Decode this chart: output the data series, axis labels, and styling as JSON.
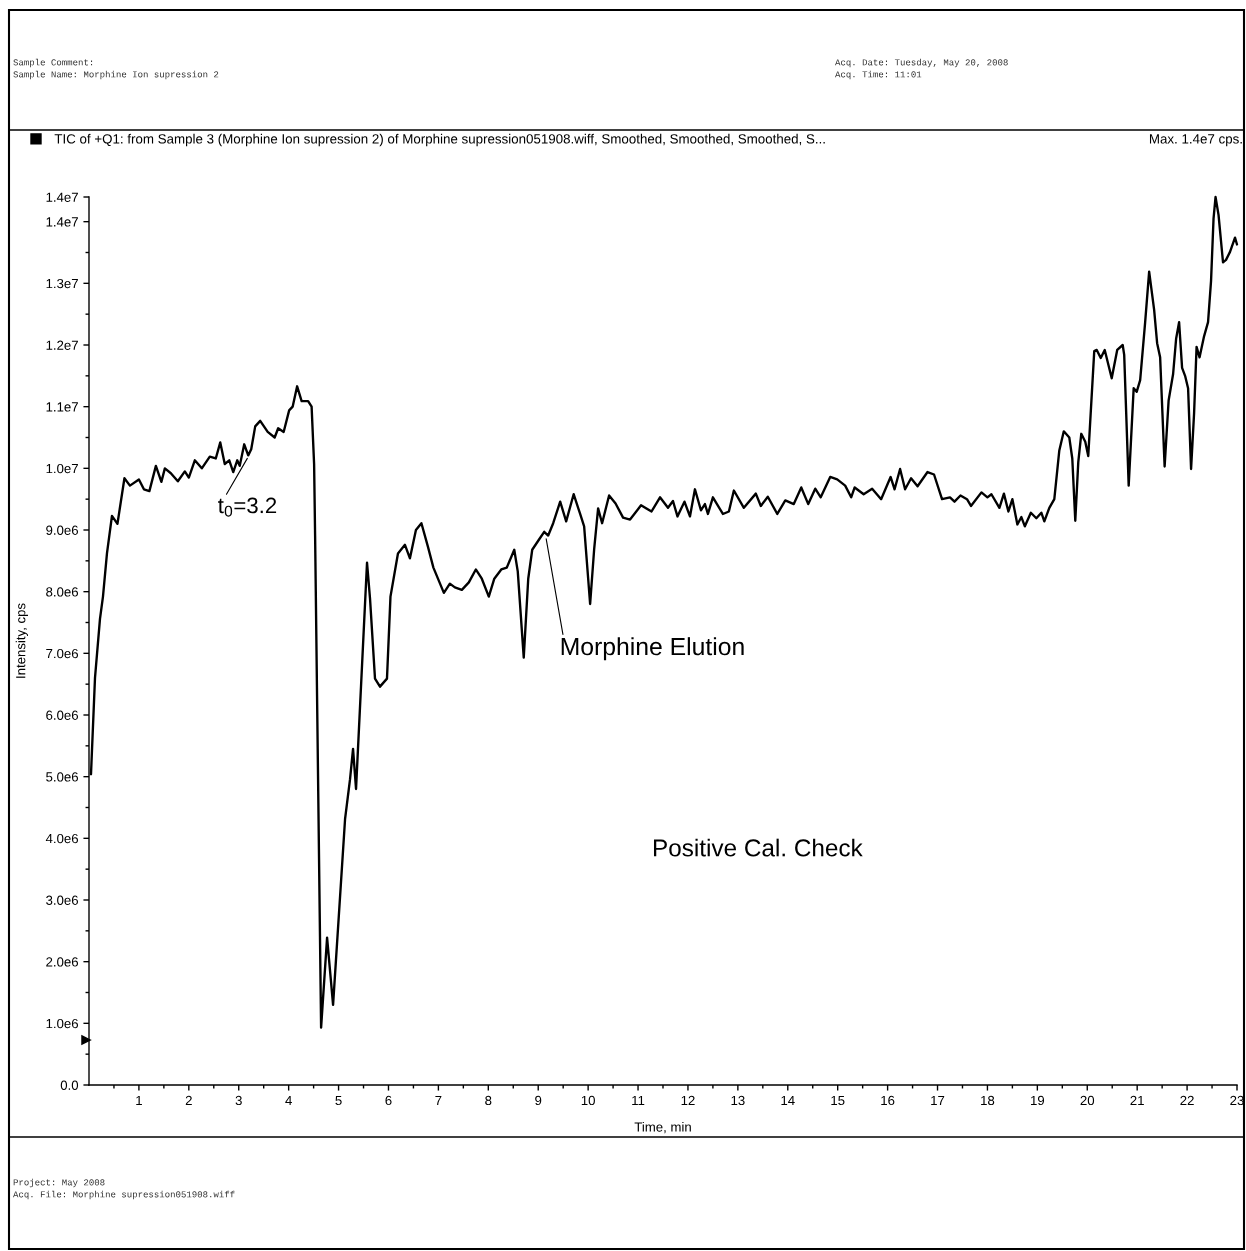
{
  "chart_data": {
    "type": "line",
    "xlabel": "Time, min",
    "ylabel": "Intensity, cps",
    "xlim": [
      0,
      23
    ],
    "ylim": [
      0,
      14400000.0
    ],
    "xticks": [
      {
        "value": 0.5,
        "label": null
      },
      1,
      {
        "value": 1.5,
        "label": null
      },
      2,
      {
        "value": 2.5,
        "label": null
      },
      3,
      {
        "value": 3.5,
        "label": null
      },
      4,
      {
        "value": 4.5,
        "label": null
      },
      5,
      {
        "value": 5.5,
        "label": null
      },
      6,
      {
        "value": 6.5,
        "label": null
      },
      7,
      {
        "value": 7.5,
        "label": null
      },
      8,
      {
        "value": 8.5,
        "label": null
      },
      9,
      {
        "value": 9.5,
        "label": null
      },
      10,
      {
        "value": 10.5,
        "label": null
      },
      11,
      {
        "value": 11.5,
        "label": null
      },
      12,
      {
        "value": 12.5,
        "label": null
      },
      13,
      {
        "value": 13.5,
        "label": null
      },
      14,
      {
        "value": 14.5,
        "label": null
      },
      15,
      {
        "value": 15.5,
        "label": null
      },
      16,
      {
        "value": 16.5,
        "label": null
      },
      17,
      {
        "value": 17.5,
        "label": null
      },
      18,
      {
        "value": 18.5,
        "label": null
      },
      19,
      {
        "value": 19.5,
        "label": null
      },
      20,
      {
        "value": 20.5,
        "label": null
      },
      21,
      {
        "value": 21.5,
        "label": null
      },
      22,
      {
        "value": 22.5,
        "label": null
      },
      23
    ],
    "yticks": [
      {
        "value": 0,
        "label": "0.0"
      },
      {
        "value": 500000.0,
        "label": null
      },
      {
        "value": 1000000.0,
        "label": "1.0e6"
      },
      {
        "value": 1500000.0,
        "label": null
      },
      {
        "value": 2000000.0,
        "label": "2.0e6"
      },
      {
        "value": 2500000.0,
        "label": null
      },
      {
        "value": 3000000.0,
        "label": "3.0e6"
      },
      {
        "value": 3500000.0,
        "label": null
      },
      {
        "value": 4000000.0,
        "label": "4.0e6"
      },
      {
        "value": 4500000.0,
        "label": null
      },
      {
        "value": 5000000.0,
        "label": "5.0e6"
      },
      {
        "value": 5500000.0,
        "label": null
      },
      {
        "value": 6000000.0,
        "label": "6.0e6"
      },
      {
        "value": 6500000.0,
        "label": null
      },
      {
        "value": 7000000.0,
        "label": "7.0e6"
      },
      {
        "value": 7500000.0,
        "label": null
      },
      {
        "value": 8000000.0,
        "label": "8.0e6"
      },
      {
        "value": 8500000.0,
        "label": null
      },
      {
        "value": 9000000.0,
        "label": "9.0e6"
      },
      {
        "value": 9500000.0,
        "label": null
      },
      {
        "value": 10000000.0,
        "label": "1.0e7"
      },
      {
        "value": 10500000.0,
        "label": null
      },
      {
        "value": 11000000.0,
        "label": "1.1e7"
      },
      {
        "value": 11500000.0,
        "label": null
      },
      {
        "value": 12000000.0,
        "label": "1.2e7"
      },
      {
        "value": 12500000.0,
        "label": null
      },
      {
        "value": 13000000.0,
        "label": "1.3e7"
      },
      {
        "value": 13500000.0,
        "label": null
      },
      {
        "value": 14000000.0,
        "label": "1.4e7"
      },
      {
        "value": 14400000.0,
        "label": "1.4e7"
      }
    ],
    "legend": "top left",
    "series": [
      {
        "name": "TIC of +Q1: from Sample 3 (Morphine Ion supression 2) of Morphine supression051908.wiff, Smoothed, Smoothed, Smoothed, S...",
        "color": "#000000",
        "x": [
          0.04,
          0.12,
          0.22,
          0.28,
          0.36,
          0.46,
          0.57,
          0.71,
          0.82,
          1.0,
          1.1,
          1.21,
          1.34,
          1.45,
          1.52,
          1.64,
          1.78,
          1.92,
          2.0,
          2.12,
          2.26,
          2.42,
          2.54,
          2.63,
          2.72,
          2.81,
          2.89,
          2.97,
          3.02,
          3.11,
          3.19,
          3.25,
          3.33,
          3.43,
          3.58,
          3.72,
          3.79,
          3.9,
          4.01,
          4.08,
          4.17,
          4.26,
          4.39,
          4.46,
          4.51,
          4.53,
          4.65,
          4.77,
          4.89,
          5.13,
          5.23,
          5.29,
          5.35,
          5.57,
          5.63,
          5.73,
          5.83,
          5.97,
          6.04,
          6.19,
          6.33,
          6.43,
          6.55,
          6.66,
          6.79,
          6.9,
          7.11,
          7.23,
          7.33,
          7.47,
          7.61,
          7.75,
          7.87,
          8.01,
          8.12,
          8.26,
          8.37,
          8.52,
          8.59,
          8.71,
          8.8,
          8.88,
          9.02,
          9.12,
          9.2,
          9.3,
          9.44,
          9.56,
          9.71,
          9.84,
          9.92,
          10.04,
          10.12,
          10.2,
          10.28,
          10.42,
          10.55,
          10.7,
          10.84,
          11.06,
          11.27,
          11.44,
          11.6,
          11.7,
          11.79,
          11.93,
          12.04,
          12.14,
          12.26,
          12.34,
          12.4,
          12.5,
          12.7,
          12.82,
          12.92,
          13.12,
          13.36,
          13.46,
          13.6,
          13.79,
          13.95,
          14.12,
          14.27,
          14.41,
          14.55,
          14.66,
          14.85,
          14.99,
          15.15,
          15.27,
          15.34,
          15.52,
          15.69,
          15.87,
          16.06,
          16.14,
          16.25,
          16.35,
          16.47,
          16.6,
          16.8,
          16.93,
          17.09,
          17.25,
          17.34,
          17.46,
          17.59,
          17.67,
          17.88,
          18.0,
          18.08,
          18.24,
          18.33,
          18.42,
          18.5,
          18.6,
          18.68,
          18.75,
          18.87,
          18.98,
          19.08,
          19.14,
          19.24,
          19.34,
          19.44,
          19.53,
          19.64,
          19.7,
          19.76,
          19.82,
          19.88,
          19.96,
          20.02,
          20.14,
          20.19,
          20.27,
          20.35,
          20.49,
          20.6,
          20.71,
          20.74,
          20.83,
          20.93,
          20.99,
          21.06,
          21.16,
          21.24,
          21.34,
          21.4,
          21.46,
          21.55,
          21.63,
          21.72,
          21.78,
          21.84,
          21.9,
          21.96,
          22.02,
          22.08,
          22.14,
          22.19,
          22.25,
          22.34,
          22.42,
          22.48,
          22.53,
          22.57,
          22.63,
          22.72,
          22.78,
          22.86,
          22.96,
          23.0
        ],
        "values": [
          5040000.0,
          6600000.0,
          7560000.0,
          7920000.0,
          8620000.0,
          9230000.0,
          9100000.0,
          9840000.0,
          9720000.0,
          9820000.0,
          9660000.0,
          9630000.0,
          10040000.0,
          9780000.0,
          10000000.0,
          9920000.0,
          9790000.0,
          9950000.0,
          9850000.0,
          10130000.0,
          10000000.0,
          10190000.0,
          10160000.0,
          10420000.0,
          10070000.0,
          10130000.0,
          9940000.0,
          10130000.0,
          10040000.0,
          10390000.0,
          10210000.0,
          10310000.0,
          10680000.0,
          10770000.0,
          10590000.0,
          10500000.0,
          10650000.0,
          10590000.0,
          10940000.0,
          11000000.0,
          11330000.0,
          11090000.0,
          11090000.0,
          11000000.0,
          10070000.0,
          8910000.0,
          930000.0,
          2390000.0,
          1300000.0,
          4310000.0,
          4960000.0,
          5450000.0,
          4800000.0,
          8470000.0,
          7890000.0,
          6590000.0,
          6460000.0,
          6590000.0,
          7920000.0,
          8620000.0,
          8760000.0,
          8540000.0,
          9000000.0,
          9110000.0,
          8730000.0,
          8390000.0,
          7980000.0,
          8130000.0,
          8070000.0,
          8030000.0,
          8150000.0,
          8360000.0,
          8210000.0,
          7920000.0,
          8210000.0,
          8360000.0,
          8390000.0,
          8680000.0,
          8330000.0,
          6930000.0,
          8210000.0,
          8680000.0,
          8850000.0,
          8970000.0,
          8910000.0,
          9110000.0,
          9460000.0,
          9140000.0,
          9580000.0,
          9260000.0,
          9060000.0,
          7800000.0,
          8680000.0,
          9350000.0,
          9110000.0,
          9560000.0,
          9430000.0,
          9200000.0,
          9170000.0,
          9400000.0,
          9300000.0,
          9530000.0,
          9360000.0,
          9470000.0,
          9220000.0,
          9460000.0,
          9220000.0,
          9660000.0,
          9320000.0,
          9420000.0,
          9260000.0,
          9530000.0,
          9260000.0,
          9300000.0,
          9640000.0,
          9360000.0,
          9590000.0,
          9390000.0,
          9540000.0,
          9260000.0,
          9480000.0,
          9420000.0,
          9690000.0,
          9420000.0,
          9670000.0,
          9530000.0,
          9860000.0,
          9820000.0,
          9720000.0,
          9530000.0,
          9690000.0,
          9580000.0,
          9670000.0,
          9500000.0,
          9860000.0,
          9660000.0,
          9990000.0,
          9660000.0,
          9840000.0,
          9710000.0,
          9940000.0,
          9900000.0,
          9500000.0,
          9530000.0,
          9460000.0,
          9560000.0,
          9500000.0,
          9390000.0,
          9610000.0,
          9530000.0,
          9580000.0,
          9360000.0,
          9590000.0,
          9300000.0,
          9500000.0,
          9090000.0,
          9210000.0,
          9060000.0,
          9280000.0,
          9190000.0,
          9280000.0,
          9140000.0,
          9360000.0,
          9500000.0,
          10290000.0,
          10600000.0,
          10500000.0,
          10160000.0,
          9150000.0,
          10100000.0,
          10560000.0,
          10430000.0,
          10200000.0,
          11900000.0,
          11920000.0,
          11790000.0,
          11920000.0,
          11460000.0,
          11920000.0,
          12000000.0,
          11840000.0,
          9720000.0,
          11300000.0,
          11240000.0,
          11430000.0,
          12370000.0,
          13190000.0,
          12570000.0,
          12030000.0,
          11800000.0,
          10030000.0,
          11100000.0,
          11530000.0,
          12100000.0,
          12370000.0,
          11630000.0,
          11500000.0,
          11300000.0,
          9990000.0,
          10890000.0,
          11970000.0,
          11800000.0,
          12140000.0,
          12370000.0,
          13040000.0,
          14050000.0,
          14400000.0,
          14110000.0,
          13340000.0,
          13380000.0,
          13510000.0,
          13740000.0,
          13630000.0
        ]
      }
    ],
    "annotations": [
      {
        "text": "t$_{0}$=3.2",
        "x": 3.2,
        "y": 10200000.0
      },
      {
        "text": "Morphine Elution",
        "x": 9.15,
        "y": 8900000.0
      },
      "Positive Cal. Check",
      "Max. 1.4e7 cps.",
      "Sample Comment:",
      "Sample Name: Morphine Ion supression 2",
      "Acq. Date: Tuesday, May 20, 2008",
      "Acq. Time: 11:01",
      "Project: May 2008",
      "Acq. File: Morphine supression051908.wiff"
    ]
  }
}
